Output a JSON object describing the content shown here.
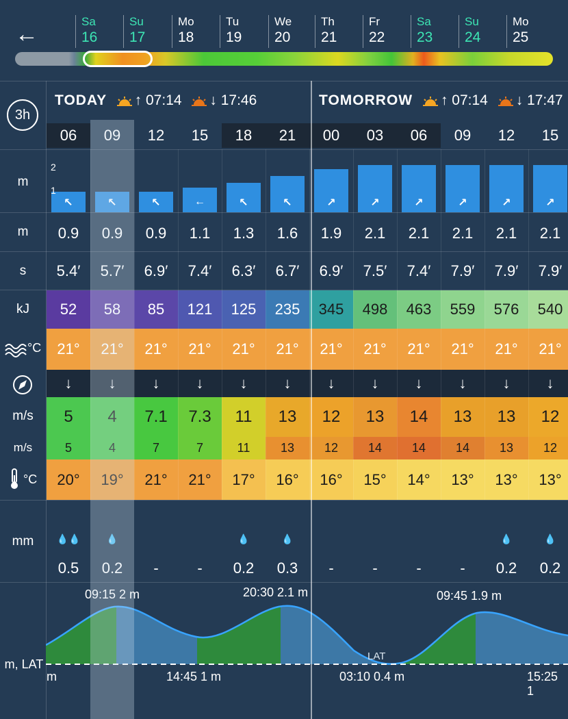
{
  "nav": {
    "back_icon": "←"
  },
  "days": [
    {
      "name": "Sa",
      "date": "16",
      "weekend": true
    },
    {
      "name": "Su",
      "date": "17",
      "weekend": true
    },
    {
      "name": "Mo",
      "date": "18",
      "weekend": false
    },
    {
      "name": "Tu",
      "date": "19",
      "weekend": false
    },
    {
      "name": "We",
      "date": "20",
      "weekend": false
    },
    {
      "name": "Th",
      "date": "21",
      "weekend": false
    },
    {
      "name": "Fr",
      "date": "22",
      "weekend": false
    },
    {
      "name": "Sa",
      "date": "23",
      "weekend": true
    },
    {
      "name": "Su",
      "date": "24",
      "weekend": true
    },
    {
      "name": "Mo",
      "date": "25",
      "weekend": false
    }
  ],
  "step_button": "3h",
  "today": {
    "title": "TODAY",
    "sunrise": "↑ 07:14",
    "sunset": "↓ 17:46"
  },
  "tomorrow": {
    "title": "TOMORROW",
    "sunrise": "↑ 07:14",
    "sunset": "↓ 17:47"
  },
  "row_labels": {
    "wave_height_chart": "m",
    "wave_height": "m",
    "wave_period": "s",
    "energy": "kJ",
    "water_temp_unit": "°C",
    "wind_speed": "m/s",
    "gusts": "m/s",
    "air_temp_unit": "°C",
    "rain": "mm",
    "tide": "m, LAT"
  },
  "chart_scale": {
    "label_2": "2",
    "label_1": "1"
  },
  "hours": [
    "06",
    "09",
    "12",
    "15",
    "18",
    "21",
    "00",
    "03",
    "06",
    "09",
    "12",
    "15"
  ],
  "wave_height_values": [
    0.9,
    0.9,
    0.9,
    1.1,
    1.3,
    1.6,
    1.9,
    2.1,
    2.1,
    2.1,
    2.1,
    2.1
  ],
  "wave_dirs": [
    "↖",
    "↖",
    "↖",
    "←",
    "↖",
    "↖",
    "↗",
    "↗",
    "↗",
    "↗",
    "↗",
    "↗"
  ],
  "wave_height": [
    "0.9",
    "0.9",
    "0.9",
    "1.1",
    "1.3",
    "1.6",
    "1.9",
    "2.1",
    "2.1",
    "2.1",
    "2.1",
    "2.1"
  ],
  "wave_period": [
    "5.4′",
    "5.7′",
    "6.9′",
    "7.4′",
    "6.3′",
    "6.7′",
    "6.9′",
    "7.5′",
    "7.4′",
    "7.9′",
    "7.9′",
    "7.9′"
  ],
  "energy": [
    "52",
    "58",
    "85",
    "121",
    "125",
    "235",
    "345",
    "498",
    "463",
    "559",
    "576",
    "540"
  ],
  "water_temp": [
    "21°",
    "21°",
    "21°",
    "21°",
    "21°",
    "21°",
    "21°",
    "21°",
    "21°",
    "21°",
    "21°",
    "21°"
  ],
  "wind_dir": [
    "↓",
    "↓",
    "↓",
    "↓",
    "↓",
    "↓",
    "↓",
    "↓",
    "↓",
    "↓",
    "↓",
    "↓"
  ],
  "wind_speed": [
    "5",
    "4",
    "7.1",
    "7.3",
    "11",
    "13",
    "12",
    "13",
    "14",
    "13",
    "13",
    "12"
  ],
  "gusts": [
    "5",
    "4",
    "7",
    "7",
    "11",
    "13",
    "12",
    "14",
    "14",
    "14",
    "13",
    "12"
  ],
  "air_temp": [
    "20°",
    "19°",
    "21°",
    "21°",
    "17°",
    "16°",
    "16°",
    "15°",
    "14°",
    "13°",
    "13°",
    "13°"
  ],
  "rain_icons": [
    "💧💧",
    "💧",
    "",
    "",
    "💧",
    "💧",
    "",
    "",
    "",
    "",
    "💧",
    "💧"
  ],
  "rain": [
    "0.5",
    "0.2",
    "-",
    "-",
    "0.2",
    "0.3",
    "-",
    "-",
    "-",
    "-",
    "0.2",
    "0.2"
  ],
  "tide_labels": {
    "high1": "09:15 2 m",
    "high2": "20:30 2.1 m",
    "high3": "09:45 1.9 m",
    "low0": "m",
    "low1": "14:45 1 m",
    "low2": "03:10 0.4 m",
    "low3": "15:25 1",
    "lat": "LAT"
  },
  "colors": {
    "background": "#243b54",
    "bar": "#2f8fe0",
    "weekend": "#3de6b4",
    "water_temp": "#f0a040"
  },
  "icons": {
    "water_temp": "waves-icon",
    "wind_dir": "compass-icon",
    "air_temp": "thermometer-icon",
    "sunrise": "sunrise-icon",
    "sunset": "sunset-icon"
  }
}
